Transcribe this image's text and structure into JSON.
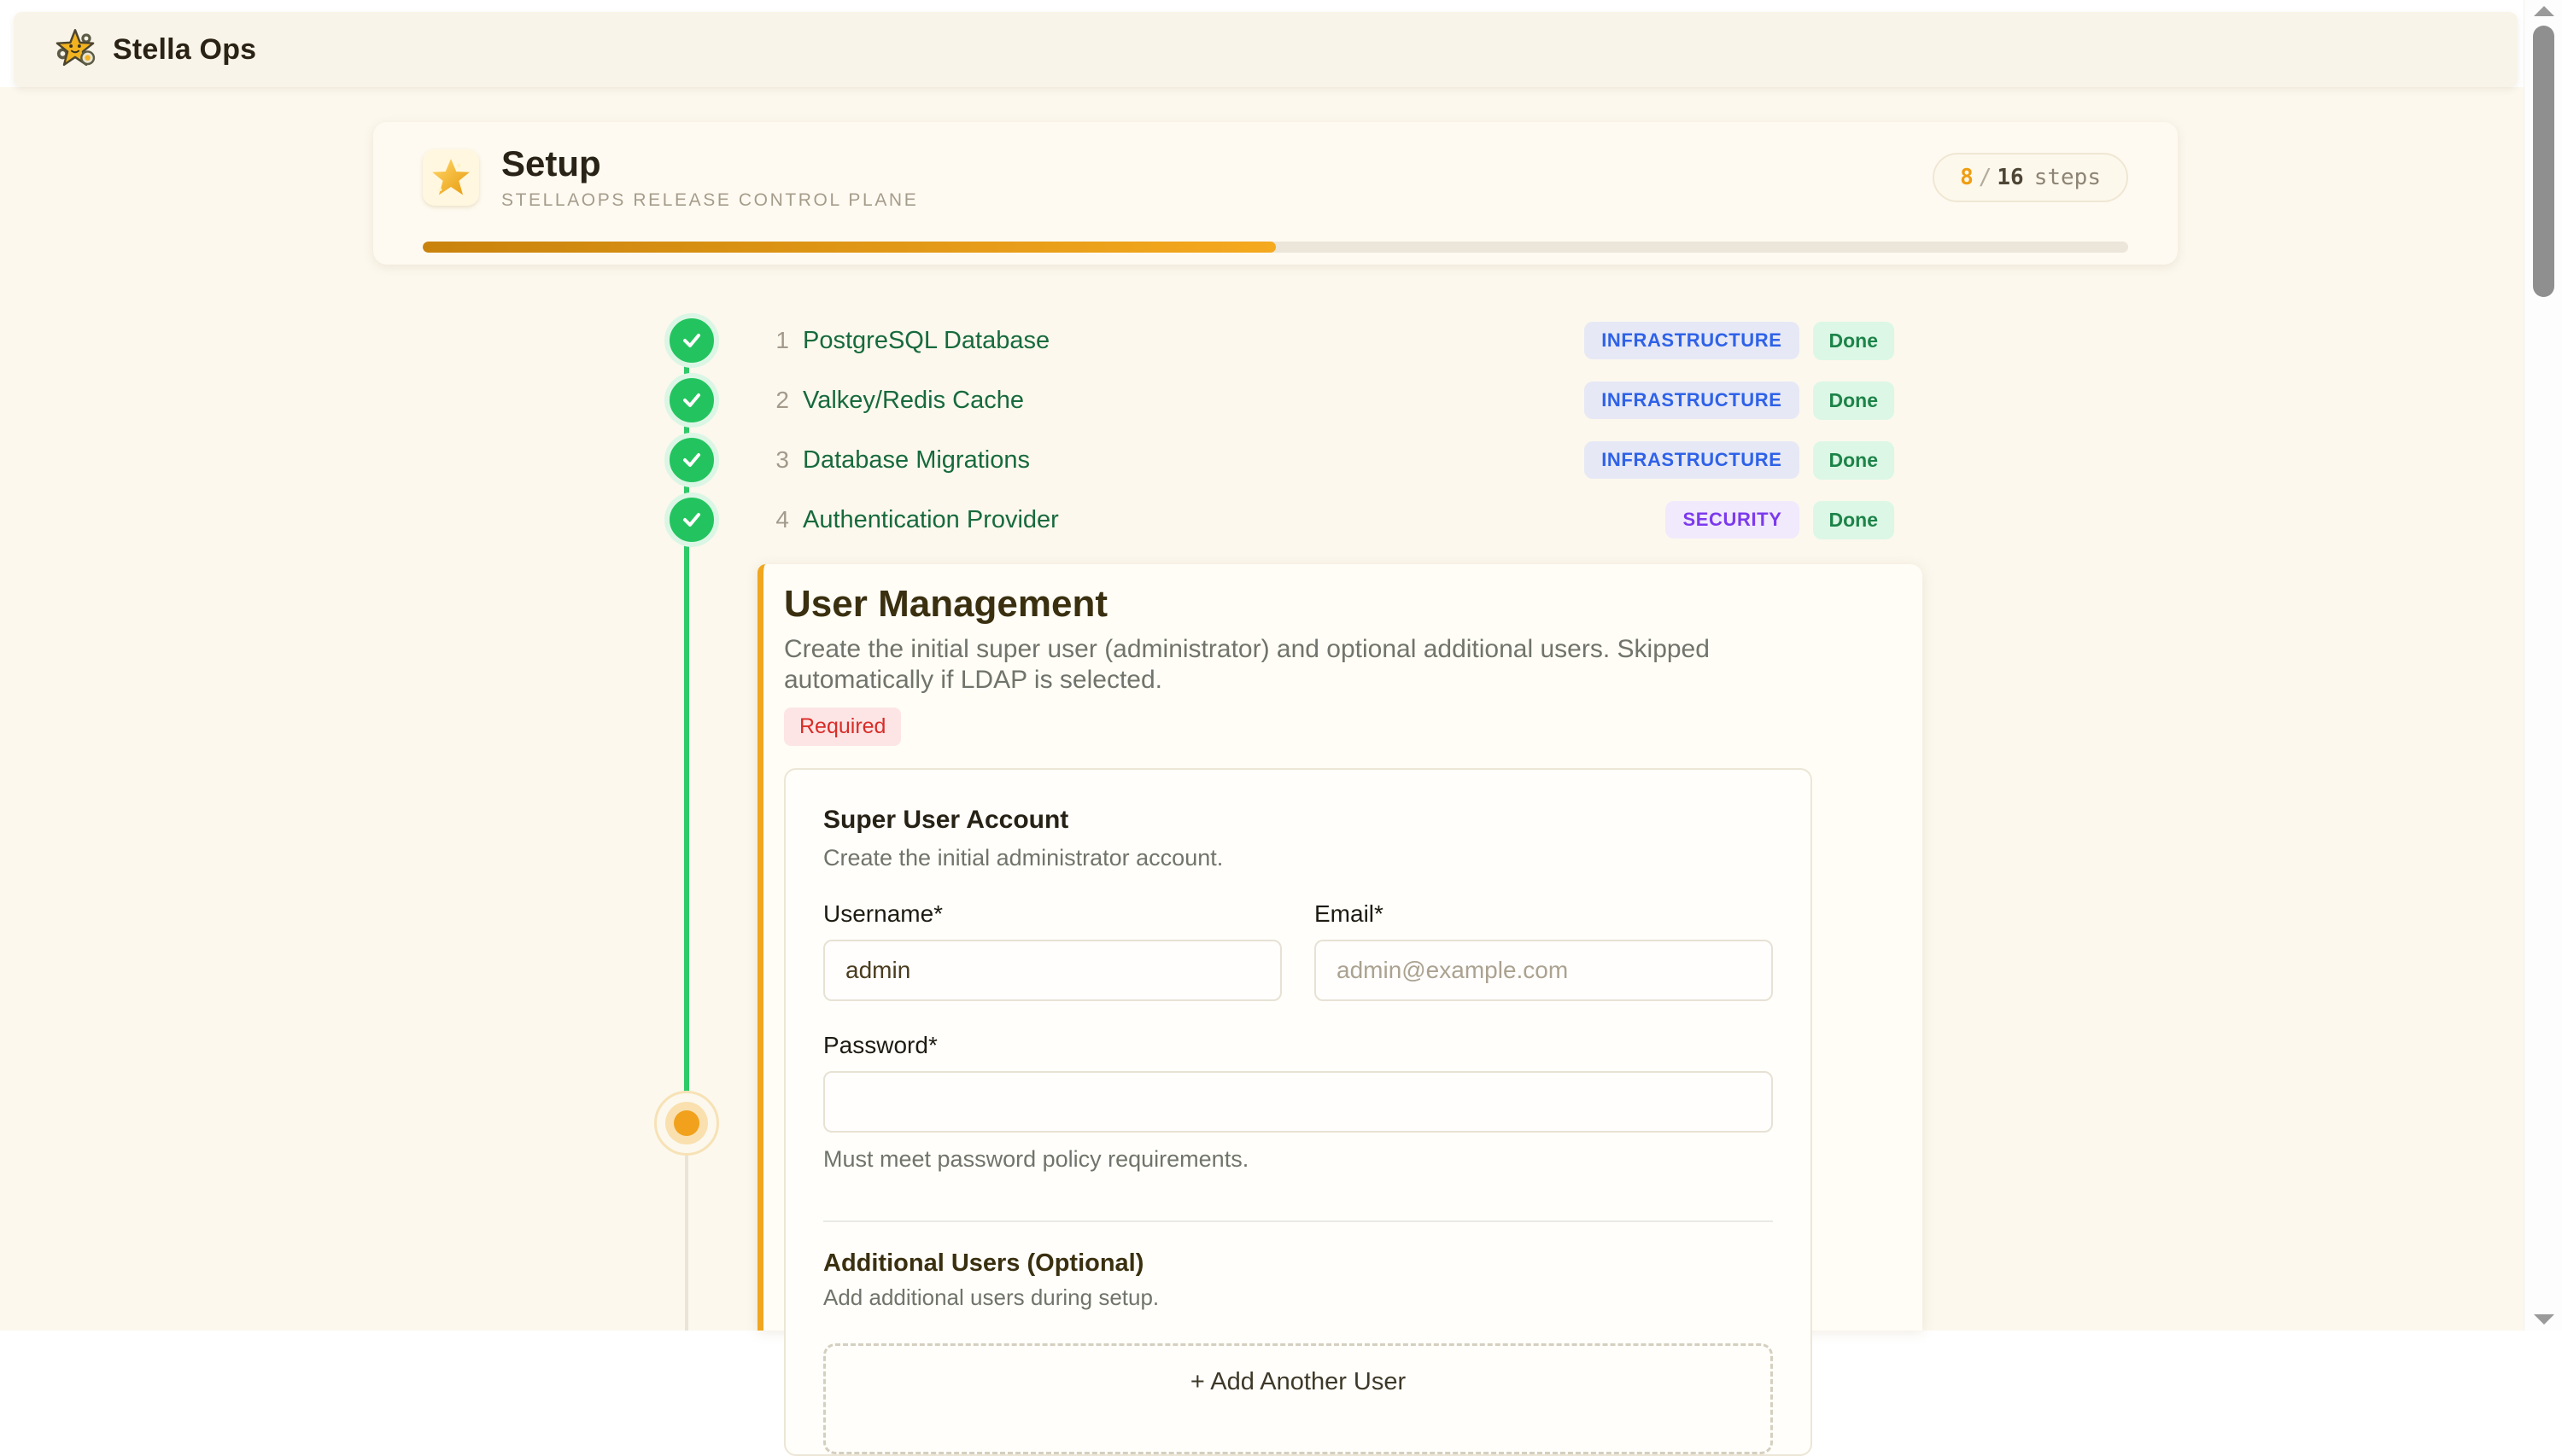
{
  "topbar": {
    "brand": "Stella Ops"
  },
  "setup_header": {
    "title": "Setup",
    "subtitle": "STELLAOPS RELEASE CONTROL PLANE",
    "steps_done": "8",
    "steps_separator": "/",
    "steps_total": "16",
    "steps_suffix": "steps",
    "progress_percent": 50,
    "progress_color": "#f0a61e"
  },
  "steps": [
    {
      "number": "1",
      "title": "PostgreSQL Database",
      "category": "INFRASTRUCTURE",
      "status": "Done"
    },
    {
      "number": "2",
      "title": "Valkey/Redis Cache",
      "category": "INFRASTRUCTURE",
      "status": "Done"
    },
    {
      "number": "3",
      "title": "Database Migrations",
      "category": "INFRASTRUCTURE",
      "status": "Done"
    },
    {
      "number": "4",
      "title": "Authentication Provider",
      "category": "SECURITY",
      "status": "Done"
    }
  ],
  "colors": {
    "accent_amber": "#f0a61e",
    "done_green": "#23c45f",
    "infrastructure_badge": "#2f62e8",
    "security_badge": "#7c3aed",
    "required_red": "#d92c27",
    "step_title_green": "#176a3c"
  },
  "section": {
    "title": "User Management",
    "description": "Create the initial super user (administrator) and optional additional users. Skipped automatically if LDAP is selected.",
    "required_badge": "Required",
    "card": {
      "title": "Super User Account",
      "subtitle": "Create the initial administrator account.",
      "fields": {
        "username_label": "Username*",
        "username_value": "admin",
        "email_label": "Email*",
        "email_placeholder": "admin@example.com",
        "password_label": "Password*",
        "password_help": "Must meet password policy requirements."
      },
      "additional": {
        "title": "Additional Users (Optional)",
        "subtitle": "Add additional users during setup.",
        "add_button": "+ Add Another User"
      }
    }
  }
}
